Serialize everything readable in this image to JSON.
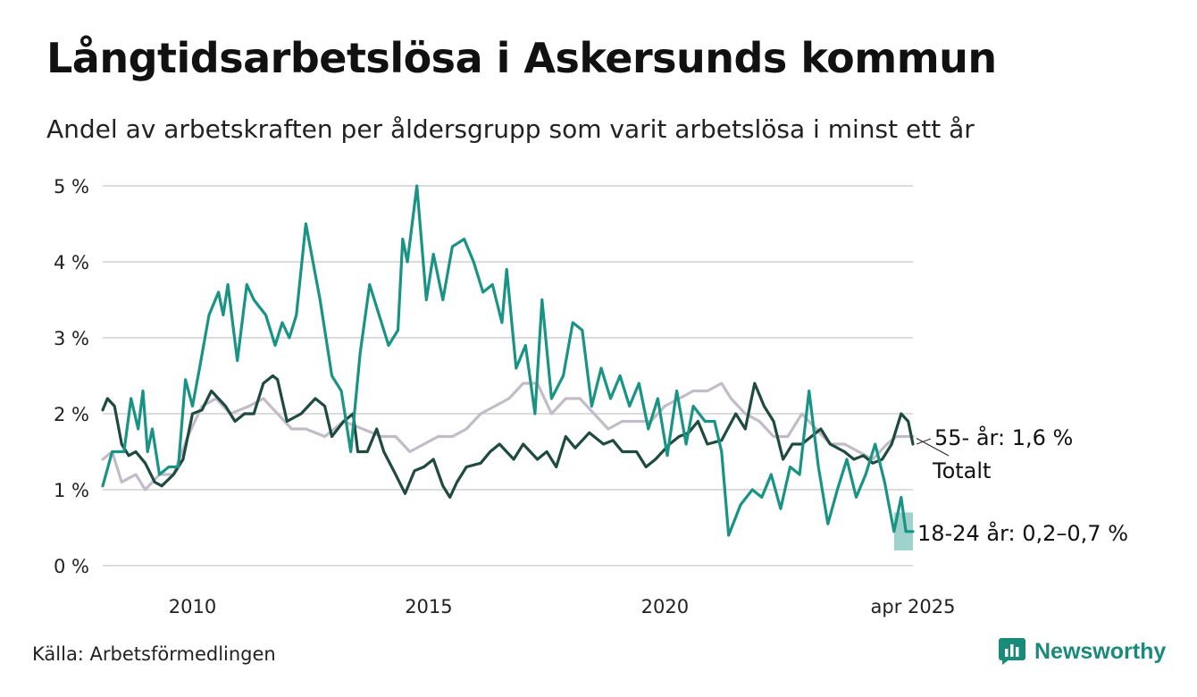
{
  "title": "Långtidsarbetslösa i Askersunds kommun",
  "subtitle": "Andel av arbetskraften per åldersgrupp som varit arbetslösa i minst ett år",
  "source": "Källa: Arbetsförmedlingen",
  "brand": {
    "name": "Newsworthy",
    "logo_icon": "bar-chart-bubble-icon",
    "color": "#1a8a7a"
  },
  "chart_data": {
    "type": "line",
    "xlim": [
      2008.1,
      2025.25
    ],
    "ylim": [
      0,
      5
    ],
    "x_ticks": [
      {
        "value": 2010,
        "label": "2010"
      },
      {
        "value": 2015,
        "label": "2015"
      },
      {
        "value": 2020,
        "label": "2020"
      },
      {
        "value": 2025.25,
        "label": "apr 2025"
      }
    ],
    "y_ticks": [
      {
        "value": 0,
        "label": "0 %"
      },
      {
        "value": 1,
        "label": "1 %"
      },
      {
        "value": 2,
        "label": "2 %"
      },
      {
        "value": 3,
        "label": "3 %"
      },
      {
        "value": 4,
        "label": "4 %"
      },
      {
        "value": 5,
        "label": "5 %"
      }
    ],
    "grid": true,
    "series": [
      {
        "key": "totalt",
        "name": "Totalt",
        "label": "Totalt",
        "color": "#c2bcc8",
        "points": [
          [
            2008.1,
            1.4
          ],
          [
            2008.3,
            1.5
          ],
          [
            2008.5,
            1.1
          ],
          [
            2008.8,
            1.2
          ],
          [
            2009.0,
            1.0
          ],
          [
            2009.3,
            1.2
          ],
          [
            2009.6,
            1.2
          ],
          [
            2009.9,
            1.7
          ],
          [
            2010.2,
            2.1
          ],
          [
            2010.5,
            2.2
          ],
          [
            2010.8,
            2.0
          ],
          [
            2011.2,
            2.1
          ],
          [
            2011.5,
            2.2
          ],
          [
            2011.8,
            2.0
          ],
          [
            2012.1,
            1.8
          ],
          [
            2012.4,
            1.8
          ],
          [
            2012.8,
            1.7
          ],
          [
            2013.2,
            1.9
          ],
          [
            2013.6,
            1.8
          ],
          [
            2014.0,
            1.7
          ],
          [
            2014.3,
            1.7
          ],
          [
            2014.6,
            1.5
          ],
          [
            2014.9,
            1.6
          ],
          [
            2015.2,
            1.7
          ],
          [
            2015.5,
            1.7
          ],
          [
            2015.8,
            1.8
          ],
          [
            2016.1,
            2.0
          ],
          [
            2016.4,
            2.1
          ],
          [
            2016.7,
            2.2
          ],
          [
            2017.0,
            2.4
          ],
          [
            2017.3,
            2.4
          ],
          [
            2017.6,
            2.0
          ],
          [
            2017.9,
            2.2
          ],
          [
            2018.2,
            2.2
          ],
          [
            2018.5,
            2.0
          ],
          [
            2018.8,
            1.8
          ],
          [
            2019.1,
            1.9
          ],
          [
            2019.4,
            1.9
          ],
          [
            2019.7,
            1.9
          ],
          [
            2020.0,
            2.1
          ],
          [
            2020.3,
            2.2
          ],
          [
            2020.6,
            2.3
          ],
          [
            2020.9,
            2.3
          ],
          [
            2021.2,
            2.4
          ],
          [
            2021.4,
            2.2
          ],
          [
            2021.7,
            2.0
          ],
          [
            2022.0,
            1.9
          ],
          [
            2022.3,
            1.7
          ],
          [
            2022.6,
            1.7
          ],
          [
            2022.9,
            2.0
          ],
          [
            2023.2,
            1.8
          ],
          [
            2023.5,
            1.6
          ],
          [
            2023.8,
            1.6
          ],
          [
            2024.1,
            1.5
          ],
          [
            2024.4,
            1.4
          ],
          [
            2024.7,
            1.6
          ],
          [
            2024.9,
            1.7
          ],
          [
            2025.25,
            1.7
          ]
        ]
      },
      {
        "key": "55",
        "name": "55- år",
        "label": "55- år: 1,6 %",
        "color": "#1f4a40",
        "points": [
          [
            2008.1,
            2.05
          ],
          [
            2008.2,
            2.2
          ],
          [
            2008.35,
            2.1
          ],
          [
            2008.5,
            1.6
          ],
          [
            2008.65,
            1.45
          ],
          [
            2008.8,
            1.5
          ],
          [
            2009.0,
            1.35
          ],
          [
            2009.2,
            1.1
          ],
          [
            2009.35,
            1.05
          ],
          [
            2009.6,
            1.2
          ],
          [
            2009.8,
            1.4
          ],
          [
            2010.0,
            2.0
          ],
          [
            2010.2,
            2.05
          ],
          [
            2010.4,
            2.3
          ],
          [
            2010.7,
            2.1
          ],
          [
            2010.9,
            1.9
          ],
          [
            2011.1,
            2.0
          ],
          [
            2011.3,
            2.0
          ],
          [
            2011.5,
            2.4
          ],
          [
            2011.7,
            2.5
          ],
          [
            2011.8,
            2.45
          ],
          [
            2012.0,
            1.9
          ],
          [
            2012.3,
            2.0
          ],
          [
            2012.6,
            2.2
          ],
          [
            2012.8,
            2.1
          ],
          [
            2012.95,
            1.7
          ],
          [
            2013.2,
            1.9
          ],
          [
            2013.4,
            2.0
          ],
          [
            2013.5,
            1.5
          ],
          [
            2013.7,
            1.5
          ],
          [
            2013.9,
            1.8
          ],
          [
            2014.05,
            1.5
          ],
          [
            2014.3,
            1.2
          ],
          [
            2014.5,
            0.95
          ],
          [
            2014.7,
            1.25
          ],
          [
            2014.9,
            1.3
          ],
          [
            2015.1,
            1.4
          ],
          [
            2015.3,
            1.05
          ],
          [
            2015.45,
            0.9
          ],
          [
            2015.6,
            1.1
          ],
          [
            2015.8,
            1.3
          ],
          [
            2016.1,
            1.35
          ],
          [
            2016.3,
            1.5
          ],
          [
            2016.5,
            1.6
          ],
          [
            2016.8,
            1.4
          ],
          [
            2017.0,
            1.6
          ],
          [
            2017.3,
            1.4
          ],
          [
            2017.5,
            1.5
          ],
          [
            2017.7,
            1.3
          ],
          [
            2017.9,
            1.7
          ],
          [
            2018.1,
            1.55
          ],
          [
            2018.4,
            1.75
          ],
          [
            2018.7,
            1.6
          ],
          [
            2018.9,
            1.65
          ],
          [
            2019.1,
            1.5
          ],
          [
            2019.4,
            1.5
          ],
          [
            2019.6,
            1.3
          ],
          [
            2019.8,
            1.4
          ],
          [
            2020.1,
            1.6
          ],
          [
            2020.3,
            1.7
          ],
          [
            2020.5,
            1.75
          ],
          [
            2020.7,
            1.9
          ],
          [
            2020.9,
            1.6
          ],
          [
            2021.2,
            1.65
          ],
          [
            2021.5,
            2.0
          ],
          [
            2021.7,
            1.8
          ],
          [
            2021.9,
            2.4
          ],
          [
            2022.1,
            2.1
          ],
          [
            2022.3,
            1.9
          ],
          [
            2022.5,
            1.4
          ],
          [
            2022.7,
            1.6
          ],
          [
            2022.9,
            1.6
          ],
          [
            2023.1,
            1.7
          ],
          [
            2023.3,
            1.8
          ],
          [
            2023.5,
            1.6
          ],
          [
            2023.8,
            1.5
          ],
          [
            2024.0,
            1.4
          ],
          [
            2024.2,
            1.45
          ],
          [
            2024.4,
            1.35
          ],
          [
            2024.6,
            1.4
          ],
          [
            2024.8,
            1.6
          ],
          [
            2025.0,
            2.0
          ],
          [
            2025.15,
            1.9
          ],
          [
            2025.25,
            1.6
          ]
        ]
      },
      {
        "key": "18-24",
        "name": "18-24 år",
        "label": "18-24 år: 0,2–0,7 %",
        "color": "#199484",
        "band": [
          [
            2024.85,
            0.2,
            0.7
          ],
          [
            2025.25,
            0.2,
            0.7
          ]
        ],
        "points": [
          [
            2008.1,
            1.05
          ],
          [
            2008.3,
            1.5
          ],
          [
            2008.55,
            1.5
          ],
          [
            2008.7,
            2.2
          ],
          [
            2008.85,
            1.8
          ],
          [
            2008.95,
            2.3
          ],
          [
            2009.05,
            1.5
          ],
          [
            2009.15,
            1.8
          ],
          [
            2009.3,
            1.2
          ],
          [
            2009.5,
            1.3
          ],
          [
            2009.7,
            1.3
          ],
          [
            2009.85,
            2.45
          ],
          [
            2010.0,
            2.1
          ],
          [
            2010.15,
            2.6
          ],
          [
            2010.35,
            3.3
          ],
          [
            2010.55,
            3.6
          ],
          [
            2010.65,
            3.3
          ],
          [
            2010.75,
            3.7
          ],
          [
            2010.95,
            2.7
          ],
          [
            2011.15,
            3.7
          ],
          [
            2011.3,
            3.5
          ],
          [
            2011.55,
            3.3
          ],
          [
            2011.75,
            2.9
          ],
          [
            2011.9,
            3.2
          ],
          [
            2012.05,
            3.0
          ],
          [
            2012.2,
            3.3
          ],
          [
            2012.4,
            4.5
          ],
          [
            2012.7,
            3.5
          ],
          [
            2012.95,
            2.5
          ],
          [
            2013.15,
            2.3
          ],
          [
            2013.35,
            1.5
          ],
          [
            2013.55,
            2.8
          ],
          [
            2013.75,
            3.7
          ],
          [
            2013.95,
            3.3
          ],
          [
            2014.15,
            2.9
          ],
          [
            2014.35,
            3.1
          ],
          [
            2014.45,
            4.3
          ],
          [
            2014.55,
            4.0
          ],
          [
            2014.75,
            5.0
          ],
          [
            2014.95,
            3.5
          ],
          [
            2015.1,
            4.1
          ],
          [
            2015.3,
            3.5
          ],
          [
            2015.5,
            4.2
          ],
          [
            2015.75,
            4.3
          ],
          [
            2015.95,
            4.0
          ],
          [
            2016.15,
            3.6
          ],
          [
            2016.35,
            3.7
          ],
          [
            2016.55,
            3.2
          ],
          [
            2016.65,
            3.9
          ],
          [
            2016.85,
            2.6
          ],
          [
            2017.05,
            2.9
          ],
          [
            2017.25,
            2.0
          ],
          [
            2017.4,
            3.5
          ],
          [
            2017.6,
            2.2
          ],
          [
            2017.85,
            2.5
          ],
          [
            2018.05,
            3.2
          ],
          [
            2018.25,
            3.1
          ],
          [
            2018.45,
            2.1
          ],
          [
            2018.65,
            2.6
          ],
          [
            2018.85,
            2.2
          ],
          [
            2019.05,
            2.5
          ],
          [
            2019.25,
            2.1
          ],
          [
            2019.45,
            2.4
          ],
          [
            2019.65,
            1.8
          ],
          [
            2019.85,
            2.2
          ],
          [
            2020.05,
            1.45
          ],
          [
            2020.25,
            2.3
          ],
          [
            2020.45,
            1.6
          ],
          [
            2020.6,
            2.1
          ],
          [
            2020.85,
            1.9
          ],
          [
            2021.05,
            1.9
          ],
          [
            2021.2,
            1.5
          ],
          [
            2021.35,
            0.4
          ],
          [
            2021.6,
            0.8
          ],
          [
            2021.85,
            1.0
          ],
          [
            2022.05,
            0.9
          ],
          [
            2022.25,
            1.2
          ],
          [
            2022.45,
            0.75
          ],
          [
            2022.65,
            1.3
          ],
          [
            2022.85,
            1.2
          ],
          [
            2023.05,
            2.3
          ],
          [
            2023.25,
            1.3
          ],
          [
            2023.45,
            0.55
          ],
          [
            2023.65,
            1.0
          ],
          [
            2023.85,
            1.4
          ],
          [
            2024.05,
            0.9
          ],
          [
            2024.25,
            1.2
          ],
          [
            2024.45,
            1.6
          ],
          [
            2024.65,
            1.1
          ],
          [
            2024.85,
            0.45
          ],
          [
            2025.0,
            0.9
          ],
          [
            2025.1,
            0.45
          ],
          [
            2025.25,
            0.45
          ]
        ]
      }
    ]
  }
}
